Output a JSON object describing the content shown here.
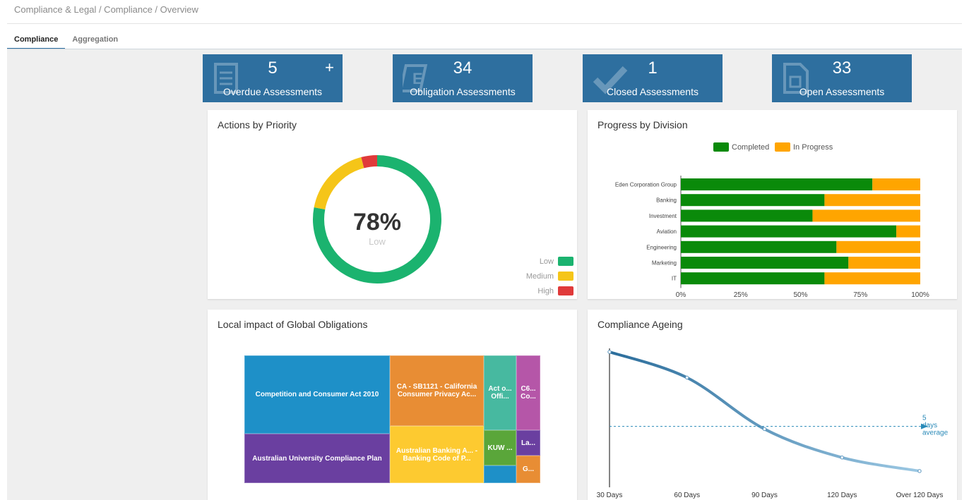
{
  "breadcrumb": "Compliance & Legal / Compliance / Overview",
  "tabs": [
    {
      "label": "Compliance",
      "active": true
    },
    {
      "label": "Aggregation",
      "active": false
    }
  ],
  "tiles": [
    {
      "value": "5",
      "label": "Overdue Assessments",
      "icon": "document-icon",
      "has_plus": true,
      "plus": "+"
    },
    {
      "value": "34",
      "label": "Obligation Assessments",
      "icon": "edit-document-icon",
      "has_plus": false
    },
    {
      "value": "1",
      "label": "Closed Assessments",
      "icon": "checkmark-icon",
      "has_plus": false
    },
    {
      "value": "33",
      "label": "Open Assessments",
      "icon": "blank-document-icon",
      "has_plus": false
    }
  ],
  "cards": {
    "actions": {
      "title": "Actions by Priority"
    },
    "progress": {
      "title": "Progress by Division"
    },
    "local_impact": {
      "title": "Local impact of Global Obligations"
    },
    "ageing": {
      "title": "Compliance Ageing"
    }
  },
  "colors": {
    "tile_blue": "#2e6f9f",
    "green": "#1bb36f",
    "yellow": "#f5c518",
    "red": "#e03a3a",
    "bar_completed": "#0a8a0a",
    "bar_in_progress": "#ffa500",
    "ageing_line": "#3a7aa8"
  },
  "chart_data": [
    {
      "type": "pie",
      "variant": "donut",
      "title": "Actions by Priority",
      "center_value": "78%",
      "center_label": "Low",
      "categories": [
        "Low",
        "Medium",
        "High"
      ],
      "values": [
        78,
        18,
        4
      ],
      "colors": [
        "#1bb36f",
        "#f5c518",
        "#e03a3a"
      ],
      "legend": "bottom-right"
    },
    {
      "type": "bar",
      "orientation": "horizontal",
      "stacked": true,
      "title": "Progress by Division",
      "categories": [
        "Eden Corporation Group",
        "Banking",
        "Investment",
        "Aviation",
        "Engineering",
        "Marketing",
        "IT"
      ],
      "series": [
        {
          "name": "Completed",
          "values": [
            80,
            60,
            55,
            90,
            65,
            70,
            60
          ],
          "color": "#0a8a0a"
        },
        {
          "name": "In Progress",
          "values": [
            20,
            40,
            45,
            10,
            35,
            30,
            40
          ],
          "color": "#ffa500"
        }
      ],
      "xticks": [
        "0%",
        "25%",
        "50%",
        "75%",
        "100%"
      ],
      "xlim": [
        0,
        100
      ],
      "legend": "top"
    },
    {
      "type": "heatmap",
      "variant": "treemap",
      "title": "Local impact of Global Obligations",
      "items": [
        {
          "label": "Competition and Consumer Act 2010",
          "color": "#1e90c8"
        },
        {
          "label": "Australian University Compliance Plan",
          "color": "#6a3fa0"
        },
        {
          "label": "CA - SB1121 - California Consumer Privacy Ac...",
          "color": "#e88d34"
        },
        {
          "label": "Australian Banking A... - Banking Code of P...",
          "color": "#fdca30"
        },
        {
          "label": "Act o... Offi...",
          "color": "#47b9a0"
        },
        {
          "label": "KUW ...",
          "color": "#5aa63a"
        },
        {
          "label": "",
          "color": "#1e90c8"
        },
        {
          "label": "C6... Co...",
          "color": "#b556a8"
        },
        {
          "label": "La...",
          "color": "#6a3fa0"
        },
        {
          "label": "G...",
          "color": "#e88d34"
        }
      ]
    },
    {
      "type": "line",
      "title": "Compliance Ageing",
      "categories": [
        "30 Days",
        "60 Days",
        "90 Days",
        "120 Days",
        "Over 120 Days"
      ],
      "series": [
        {
          "values": [
            100,
            81,
            43,
            22,
            12
          ]
        }
      ],
      "ylim": [
        0,
        100
      ],
      "average_line": {
        "value": 45,
        "label_lines": [
          "5",
          "days",
          "average"
        ]
      }
    }
  ]
}
